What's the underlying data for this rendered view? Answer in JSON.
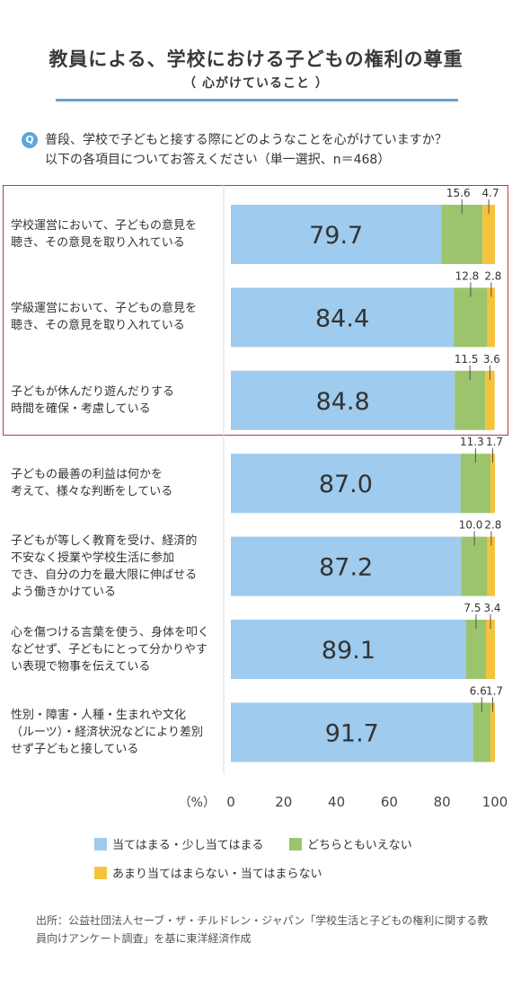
{
  "header": {
    "title": "教員による、学校における子どもの権利の尊重",
    "subtitle": "（ 心がけていること ）"
  },
  "question": {
    "badge": "Q",
    "line1": "普段、学校で子どもと接する際にどのようなことを心がけていますか？",
    "line2": "以下の各項目についてお答えください（単一選択、n＝468）"
  },
  "rows": [
    {
      "label_lines": [
        "学校運営において、子どもの意見を",
        "聴き、その意見を取り入れている"
      ]
    },
    {
      "label_lines": [
        "学級運営において、子どもの意見を",
        "聴き、その意見を取り入れている"
      ]
    },
    {
      "label_lines": [
        "子どもが休んだり遊んだりする",
        "時間を確保・考慮している"
      ]
    },
    {
      "label_lines": [
        "子どもの最善の利益は何かを",
        "考えて、様々な判断をしている"
      ]
    },
    {
      "label_lines": [
        "子どもが等しく教育を受け、経済的",
        "不安なく授業や学校生活に参加",
        "でき、自分の力を最大限に伸ばせる",
        "よう働きかけている"
      ]
    },
    {
      "label_lines": [
        "心を傷つける言葉を使う、身体を叩く",
        "などせず、子どもにとって分かりやす",
        "い表現で物事を伝えている"
      ]
    },
    {
      "label_lines": [
        "性別・障害・人種・生まれや文化",
        "（ルーツ）・経済状況などにより差別",
        "せず子どもと接している"
      ]
    }
  ],
  "chart_data": {
    "type": "bar",
    "orientation": "horizontal",
    "stacked": true,
    "categories": [
      "学校運営において、子どもの意見を聴き、その意見を取り入れている",
      "学級運営において、子どもの意見を聴き、その意見を取り入れている",
      "子どもが休んだり遊んだりする時間を確保・考慮している",
      "子どもの最善の利益は何かを考えて、様々な判断をしている",
      "子どもが等しく教育を受け、経済的不安なく授業や学校生活に参加でき、自分の力を最大限に伸ばせるよう働きかけている",
      "心を傷つける言葉を使う、身体を叩くなどせず、子どもにとって分かりやすい表現で物事を伝えている",
      "性別・障害・人種・生まれや文化（ルーツ）・経済状況などにより差別せず子どもと接している"
    ],
    "series": [
      {
        "name": "当てはまる・少し当てはまる",
        "color": "#9ecbee",
        "values": [
          79.7,
          84.4,
          84.8,
          87.0,
          87.2,
          89.1,
          91.7
        ],
        "labels": [
          "79.7",
          "84.4",
          "84.8",
          "87.0",
          "87.2",
          "89.1",
          "91.7"
        ]
      },
      {
        "name": "どちらともいえない",
        "color": "#9bc46c",
        "values": [
          15.6,
          12.8,
          11.5,
          11.3,
          10.0,
          7.5,
          6.6
        ],
        "labels": [
          "15.6",
          "12.8",
          "11.5",
          "11.3",
          "10.0",
          "7.5",
          "6.6"
        ]
      },
      {
        "name": "あまり当てはまらない・当てはまらない",
        "color": "#f5c33b",
        "values": [
          4.7,
          2.8,
          3.6,
          1.7,
          2.8,
          3.4,
          1.7
        ],
        "labels": [
          "4.7",
          "2.8",
          "3.6",
          "1.7",
          "2.8",
          "3.4",
          "1.7"
        ]
      }
    ],
    "xlim": [
      0,
      100
    ],
    "xticks": [
      "0",
      "20",
      "40",
      "60",
      "80",
      "100"
    ],
    "xunit": "（%）",
    "legend_position": "bottom",
    "highlighted_categories": [
      0,
      1,
      2
    ]
  },
  "source": {
    "text": "出所：公益社団法人セーブ・ザ・チルドレン・ジャパン「学校生活と子どもの権利に関する教員向けアンケート調査」を基に東洋経済作成"
  }
}
